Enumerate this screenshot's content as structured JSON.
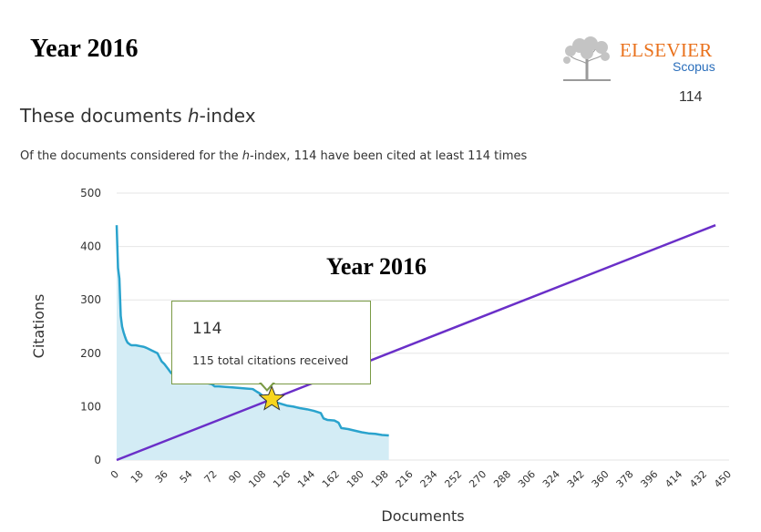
{
  "header": {
    "year_label": "Year 2016",
    "brand_name": "ELSEVIER",
    "brand_product": "Scopus",
    "h_index_value": "114",
    "heading_pre": "These documents ",
    "heading_em": "h",
    "heading_post": "-index",
    "subtitle_pre": "Of the documents considered for the ",
    "subtitle_em": "h",
    "subtitle_post": "-index, 114 have been cited at least 114 times"
  },
  "tooltip": {
    "value": "114",
    "text": "115 total citations received"
  },
  "chart_data": {
    "type": "area",
    "annotation": "Year 2016",
    "xlabel": "Documents",
    "ylabel": "Citations",
    "xlim": [
      0,
      450
    ],
    "ylim": [
      0,
      500
    ],
    "x_ticks": [
      0,
      18,
      36,
      54,
      72,
      90,
      108,
      126,
      144,
      162,
      180,
      198,
      216,
      234,
      252,
      270,
      288,
      306,
      324,
      342,
      360,
      378,
      396,
      414,
      432,
      450
    ],
    "y_ticks": [
      0,
      100,
      200,
      300,
      400,
      500
    ],
    "grid": true,
    "colors": {
      "area_fill": "#d3ecf5",
      "area_line": "#2aa3cd",
      "diagonal": "#6a2fc8",
      "grid": "#e6e6e6",
      "star": "#f7d51d"
    },
    "series": [
      {
        "x": [
          0,
          1,
          2,
          3,
          4,
          5,
          6,
          7,
          8,
          9,
          10,
          11,
          14,
          18,
          20,
          22,
          26,
          30,
          33,
          35,
          38,
          40,
          42,
          45,
          50,
          55,
          60,
          65,
          70,
          72,
          75,
          80,
          85,
          90,
          95,
          100,
          103,
          105,
          110,
          115,
          120,
          125,
          130,
          135,
          140,
          145,
          150,
          152,
          155,
          160,
          163,
          165,
          170,
          175,
          180,
          185,
          190,
          195,
          200
        ],
        "y": [
          440,
          360,
          340,
          270,
          250,
          240,
          232,
          225,
          220,
          218,
          216,
          215,
          215,
          213,
          212,
          210,
          205,
          200,
          185,
          180,
          170,
          163,
          160,
          158,
          155,
          150,
          148,
          145,
          142,
          138,
          138,
          137,
          136,
          135,
          134,
          133,
          128,
          125,
          115,
          110,
          106,
          102,
          100,
          97,
          95,
          92,
          88,
          78,
          75,
          74,
          70,
          60,
          58,
          55,
          52,
          50,
          49,
          47,
          46
        ]
      },
      {
        "x": [
          0,
          440
        ],
        "y": [
          0,
          440
        ]
      }
    ],
    "h_index_point": {
      "x": 114,
      "y": 114
    }
  }
}
